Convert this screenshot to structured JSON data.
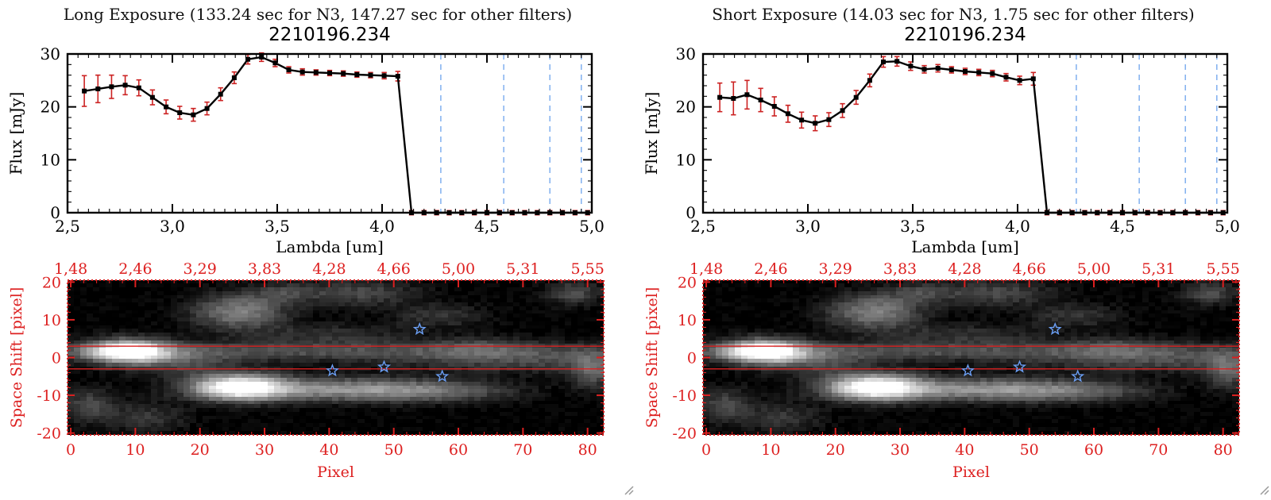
{
  "chart_data": [
    {
      "type": "line",
      "header": "Long Exposure (133.24 sec for N3, 147.27 sec for other filters)",
      "title": "2210196.234",
      "xlabel": "Lambda [um]",
      "ylabel": "Flux [mJy]",
      "xlim": [
        2.5,
        5.0
      ],
      "ylim": [
        0,
        30
      ],
      "xtick_values": [
        2.5,
        3.0,
        3.5,
        4.0,
        4.5,
        5.0
      ],
      "xtick_labels": [
        "2,5",
        "3,0",
        "3,5",
        "4,0",
        "4,5",
        "5,0"
      ],
      "ytick_values": [
        0,
        10,
        20,
        30
      ],
      "ytick_labels": [
        "0",
        "10",
        "20",
        "30"
      ],
      "x": [
        2.58,
        2.645,
        2.71,
        2.775,
        2.84,
        2.905,
        2.97,
        3.035,
        3.1,
        3.165,
        3.23,
        3.295,
        3.36,
        3.425,
        3.49,
        3.555,
        3.62,
        3.685,
        3.75,
        3.815,
        3.88,
        3.945,
        4.01,
        4.075,
        4.14,
        4.2,
        4.26,
        4.32,
        4.38,
        4.44,
        4.5,
        4.56,
        4.62,
        4.68,
        4.74,
        4.8,
        4.86,
        4.92,
        4.98
      ],
      "y": [
        23.0,
        23.4,
        23.8,
        24.1,
        23.6,
        21.8,
        20.0,
        18.9,
        18.5,
        19.7,
        22.4,
        25.5,
        29.0,
        29.4,
        28.3,
        27.0,
        26.6,
        26.5,
        26.4,
        26.3,
        26.1,
        26.0,
        25.9,
        25.8,
        0,
        0,
        0,
        0,
        0,
        0,
        0,
        0,
        0,
        0,
        0,
        0,
        0,
        0,
        0
      ],
      "yerr": [
        2.9,
        2.6,
        2.2,
        1.8,
        1.5,
        1.4,
        1.3,
        1.2,
        1.2,
        1.2,
        1.2,
        1.1,
        0.9,
        0.8,
        0.7,
        0.6,
        0.6,
        0.5,
        0.5,
        0.5,
        0.5,
        0.5,
        0.6,
        0.9,
        0.4,
        0.4,
        0.4,
        0.4,
        0.4,
        0.4,
        0.4,
        0.4,
        0.4,
        0.4,
        0.4,
        0.4,
        0.4,
        0.4,
        0.4
      ],
      "dashed_lines_x": [
        4.28,
        4.58,
        4.8,
        4.95
      ],
      "colors": {
        "line": "#000000",
        "error": "#cc2222",
        "dashed": "#77aaee"
      }
    },
    {
      "type": "heatmap",
      "xlabel": "Pixel",
      "ylabel": "Space Shift [pixel]",
      "xlim": [
        0,
        82
      ],
      "ylim": [
        -20,
        20
      ],
      "xtick_values": [
        0,
        10,
        20,
        30,
        40,
        50,
        60,
        70,
        80
      ],
      "xtick_labels": [
        "0",
        "10",
        "20",
        "30",
        "40",
        "50",
        "60",
        "70",
        "80"
      ],
      "top_axis_labels": [
        "1,48",
        "2,46",
        "3,29",
        "3,83",
        "4,28",
        "4,66",
        "5,00",
        "5,31",
        "5,55"
      ],
      "ytick_values": [
        20,
        10,
        0,
        -10,
        -20
      ],
      "ytick_labels": [
        "20",
        "10",
        "0",
        "-10",
        "-20"
      ],
      "aperture_lines_y": [
        3,
        -3
      ],
      "stars": [
        [
          54,
          7.5
        ],
        [
          40.5,
          -3.5
        ],
        [
          48.5,
          -2.5
        ],
        [
          57.5,
          -5
        ]
      ],
      "blobs": [
        [
          9,
          1.5,
          4.5,
          2.2,
          1.05
        ],
        [
          40,
          1.5,
          45,
          1.8,
          0.3
        ],
        [
          70,
          -1.5,
          14,
          2.0,
          0.22
        ],
        [
          26,
          -8,
          5,
          2.4,
          1.0
        ],
        [
          40,
          -8.5,
          12,
          2.2,
          0.5
        ],
        [
          56,
          -9,
          9,
          2.0,
          0.32
        ],
        [
          26,
          12,
          5,
          3.2,
          0.5
        ],
        [
          45,
          17,
          6,
          2.4,
          0.28
        ],
        [
          33,
          17,
          4,
          2.0,
          0.22
        ],
        [
          3,
          -13,
          3,
          3,
          0.3
        ],
        [
          12,
          -16,
          4,
          2.5,
          0.22
        ],
        [
          78,
          17,
          3,
          2.2,
          0.3
        ],
        [
          81,
          -4,
          2.5,
          3,
          0.35
        ],
        [
          40,
          6,
          9,
          2.0,
          0.18
        ],
        [
          57,
          11,
          5,
          2.2,
          0.2
        ],
        [
          64,
          3,
          6,
          1.8,
          0.18
        ],
        [
          18,
          -2,
          6,
          2.5,
          0.22
        ]
      ],
      "noise": 0.1,
      "axis_color": "#dd2020",
      "aperture_color": "#dd2020",
      "star_color": "#6b9ff5"
    },
    {
      "type": "line",
      "header": "Short Exposure (14.03 sec for N3, 1.75 sec for other filters)",
      "title": "2210196.234",
      "xlabel": "Lambda [um]",
      "ylabel": "Flux [mJy]",
      "xlim": [
        2.5,
        5.0
      ],
      "ylim": [
        0,
        30
      ],
      "xtick_values": [
        2.5,
        3.0,
        3.5,
        4.0,
        4.5,
        5.0
      ],
      "xtick_labels": [
        "2,5",
        "3,0",
        "3,5",
        "4,0",
        "4,5",
        "5,0"
      ],
      "ytick_values": [
        0,
        10,
        20,
        30
      ],
      "ytick_labels": [
        "0",
        "10",
        "20",
        "30"
      ],
      "x": [
        2.58,
        2.645,
        2.71,
        2.775,
        2.84,
        2.905,
        2.97,
        3.035,
        3.1,
        3.165,
        3.23,
        3.295,
        3.36,
        3.425,
        3.49,
        3.555,
        3.62,
        3.685,
        3.75,
        3.815,
        3.88,
        3.945,
        4.01,
        4.075,
        4.14,
        4.2,
        4.26,
        4.32,
        4.38,
        4.44,
        4.5,
        4.56,
        4.62,
        4.68,
        4.74,
        4.8,
        4.86,
        4.92,
        4.98
      ],
      "y": [
        21.8,
        21.6,
        22.3,
        21.3,
        20.1,
        18.7,
        17.5,
        16.9,
        17.6,
        19.3,
        21.8,
        25.0,
        28.5,
        28.6,
        27.7,
        27.1,
        27.3,
        27.0,
        26.7,
        26.5,
        26.3,
        25.6,
        25.0,
        25.3,
        0,
        0,
        0,
        0,
        0,
        0,
        0,
        0,
        0,
        0,
        0,
        0,
        0,
        0,
        0
      ],
      "yerr": [
        2.7,
        3.1,
        2.7,
        2.2,
        1.8,
        1.6,
        1.5,
        1.4,
        1.3,
        1.3,
        1.3,
        1.2,
        1.0,
        0.9,
        0.8,
        0.7,
        0.7,
        0.6,
        0.6,
        0.6,
        0.6,
        0.7,
        0.8,
        1.2,
        0.4,
        0.4,
        0.4,
        0.4,
        0.4,
        0.4,
        0.4,
        0.4,
        0.4,
        0.4,
        0.4,
        0.4,
        0.4,
        0.4,
        0.4
      ],
      "dashed_lines_x": [
        4.28,
        4.58,
        4.8,
        4.95
      ],
      "colors": {
        "line": "#000000",
        "error": "#cc2222",
        "dashed": "#77aaee"
      }
    },
    {
      "type": "heatmap",
      "xlabel": "Pixel",
      "ylabel": "Space Shift [pixel]",
      "xlim": [
        0,
        82
      ],
      "ylim": [
        -20,
        20
      ],
      "xtick_values": [
        0,
        10,
        20,
        30,
        40,
        50,
        60,
        70,
        80
      ],
      "xtick_labels": [
        "0",
        "10",
        "20",
        "30",
        "40",
        "50",
        "60",
        "70",
        "80"
      ],
      "top_axis_labels": [
        "1,48",
        "2,46",
        "3,29",
        "3,83",
        "4,28",
        "4,66",
        "5,00",
        "5,31",
        "5,55"
      ],
      "ytick_values": [
        20,
        10,
        0,
        -10,
        -20
      ],
      "ytick_labels": [
        "20",
        "10",
        "0",
        "-10",
        "-20"
      ],
      "aperture_lines_y": [
        3,
        -3
      ],
      "stars": [
        [
          54,
          7.5
        ],
        [
          40.5,
          -3.5
        ],
        [
          48.5,
          -2.5
        ],
        [
          57.5,
          -5
        ]
      ],
      "blobs": [
        [
          9,
          1.5,
          4.5,
          2.2,
          1.05
        ],
        [
          40,
          1.5,
          45,
          1.8,
          0.3
        ],
        [
          70,
          -1.5,
          14,
          2.0,
          0.22
        ],
        [
          26,
          -8,
          5,
          2.4,
          1.0
        ],
        [
          40,
          -8.5,
          12,
          2.2,
          0.5
        ],
        [
          56,
          -9,
          9,
          2.0,
          0.32
        ],
        [
          26,
          12,
          5,
          3.2,
          0.5
        ],
        [
          45,
          17,
          6,
          2.4,
          0.28
        ],
        [
          33,
          17,
          4,
          2.0,
          0.22
        ],
        [
          3,
          -13,
          3,
          3,
          0.3
        ],
        [
          12,
          -16,
          4,
          2.5,
          0.22
        ],
        [
          78,
          17,
          3,
          2.2,
          0.3
        ],
        [
          81,
          -4,
          2.5,
          3,
          0.35
        ],
        [
          40,
          6,
          9,
          2.0,
          0.18
        ],
        [
          57,
          11,
          5,
          2.2,
          0.2
        ],
        [
          64,
          3,
          6,
          1.8,
          0.18
        ],
        [
          18,
          -2,
          6,
          2.5,
          0.22
        ]
      ],
      "noise": 0.1,
      "axis_color": "#dd2020",
      "aperture_color": "#dd2020",
      "star_color": "#6b9ff5"
    }
  ]
}
